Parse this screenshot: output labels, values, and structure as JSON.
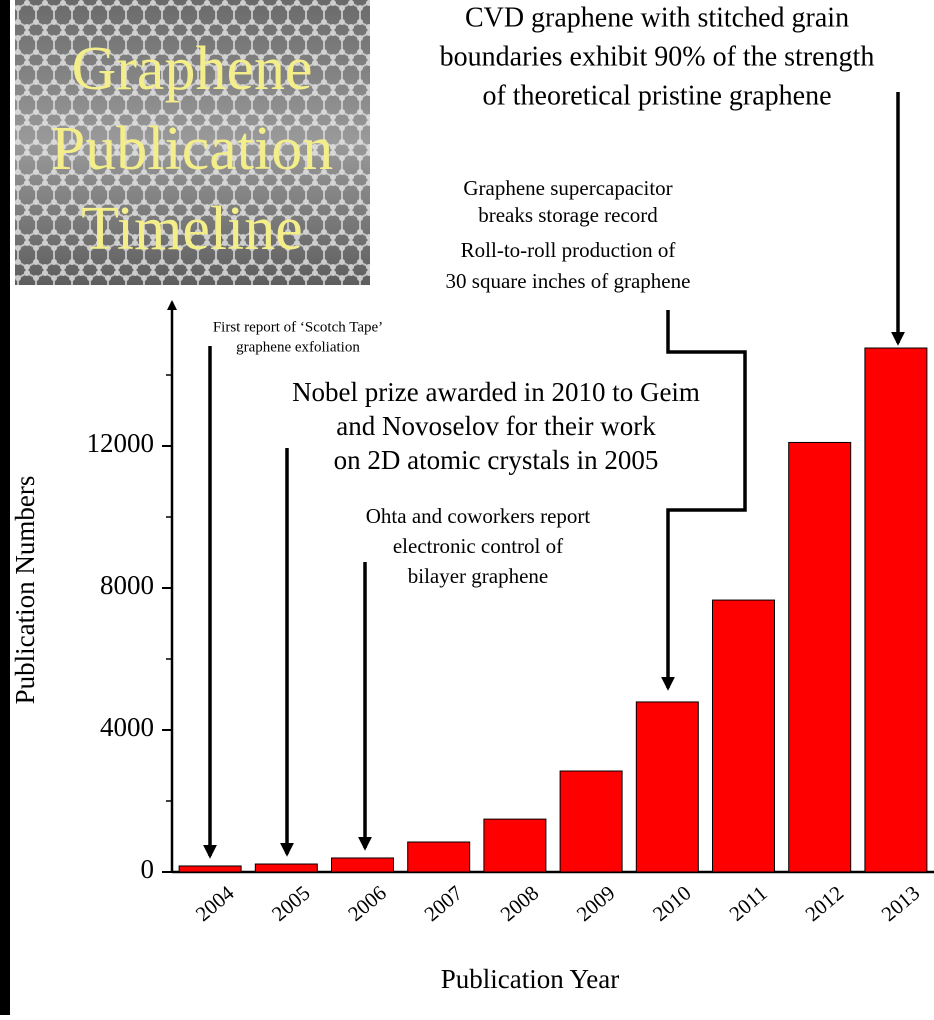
{
  "chart_data": {
    "type": "bar",
    "title_lines": [
      "Graphene",
      "Publication",
      "Timeline"
    ],
    "x_label": "Publication Year",
    "y_label": "Publication Numbers",
    "categories": [
      "2004",
      "2005",
      "2006",
      "2007",
      "2008",
      "2009",
      "2010",
      "2011",
      "2012",
      "2013"
    ],
    "values": [
      170,
      225,
      395,
      845,
      1490,
      2845,
      4790,
      7660,
      12100,
      14760
    ],
    "color": "#ff0000",
    "ylim": [
      0,
      16000
    ],
    "yticks": [
      0,
      4000,
      8000,
      12000
    ],
    "minor_yticks": [
      2000,
      6000,
      10000,
      14000
    ],
    "annotations": [
      {
        "lines": [
          "First report of ‘Scotch Tape’",
          "graphene exfoliation"
        ]
      },
      {
        "lines": [
          "Nobel prize awarded in 2010 to Geim",
          "and Novoselov for their work",
          "on 2D atomic crystals in 2005"
        ]
      },
      {
        "lines": [
          "Ohta and coworkers report",
          "electronic control of",
          "bilayer graphene"
        ]
      },
      {
        "lines": [
          "Graphene supercapacitor",
          "breaks storage record"
        ]
      },
      {
        "lines": [
          "Roll-to-roll production of",
          "30 square inches of graphene"
        ]
      },
      {
        "lines": [
          "CVD graphene with stitched grain",
          "boundaries exhibit 90% of the strength",
          "of theoretical pristine graphene"
        ]
      }
    ]
  }
}
